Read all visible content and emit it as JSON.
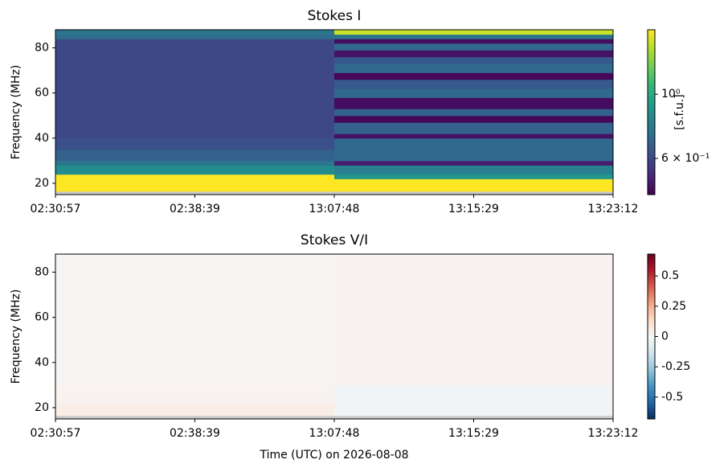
{
  "chart_data": [
    {
      "type": "heatmap",
      "title": "Stokes I",
      "ylabel": "Frequency (MHz)",
      "categories": [
        "02:30:57",
        "02:38:39",
        "13:07:48",
        "13:15:29",
        "13:23:12"
      ],
      "ylim": [
        15,
        88
      ],
      "yticks": [
        20,
        40,
        60,
        80
      ],
      "y_edges": [
        15,
        16.5,
        22,
        24,
        28,
        30,
        35,
        40,
        42,
        47,
        50,
        53,
        58,
        62,
        66,
        69,
        73,
        76,
        79,
        82,
        84,
        86,
        88
      ],
      "values": [
        [
          null,
          null
        ],
        [
          1.67,
          1.67
        ],
        [
          1.67,
          0.9
        ],
        [
          0.85,
          0.8
        ],
        [
          0.75,
          0.5
        ],
        [
          0.68,
          0.7
        ],
        [
          0.62,
          0.7
        ],
        [
          0.6,
          0.48
        ],
        [
          0.6,
          0.68
        ],
        [
          0.6,
          0.46
        ],
        [
          0.6,
          0.68
        ],
        [
          0.6,
          0.47
        ],
        [
          0.6,
          0.7
        ],
        [
          0.6,
          0.65
        ],
        [
          0.6,
          0.46
        ],
        [
          0.6,
          0.7
        ],
        [
          0.6,
          0.65
        ],
        [
          0.6,
          0.48
        ],
        [
          0.6,
          0.7
        ],
        [
          0.6,
          0.47
        ],
        [
          0.72,
          0.75
        ],
        [
          0.75,
          1.5
        ]
      ],
      "colormap": "viridis",
      "log_color": true,
      "clim": [
        0.45,
        1.67
      ],
      "cticks": [
        {
          "value": 1,
          "label": "10⁰"
        },
        {
          "value": 0.6,
          "label": "6 × 10⁻¹"
        }
      ],
      "clabel": "[s.f.u.]"
    },
    {
      "type": "heatmap",
      "title": "Stokes V/I",
      "ylabel": "Frequency (MHz)",
      "xlabel": "Time (UTC) on 2026-08-08",
      "categories": [
        "02:30:57",
        "02:38:39",
        "13:07:48",
        "13:15:29",
        "13:23:12"
      ],
      "ylim": [
        15,
        88
      ],
      "yticks": [
        20,
        40,
        60,
        80
      ],
      "y_edges": [
        15,
        16.5,
        22,
        30,
        88
      ],
      "values": [
        [
          null,
          null
        ],
        [
          0.05,
          -0.02
        ],
        [
          0.02,
          -0.02
        ],
        [
          0.01,
          0.02
        ]
      ],
      "colormap": "RdBu_r",
      "log_color": false,
      "clim": [
        -0.68,
        0.68
      ],
      "cticks": [
        -0.5,
        -0.25,
        0,
        0.25,
        0.5
      ]
    }
  ]
}
